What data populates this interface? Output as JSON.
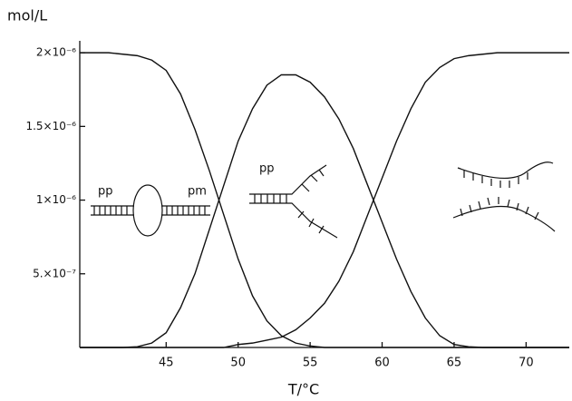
{
  "chart_data": {
    "type": "line",
    "y_label": "mol/L",
    "x_label": "T/°C",
    "annotations": [
      "pp",
      "pm",
      "pp"
    ],
    "xlim": [
      39,
      73
    ],
    "xticks": [
      45,
      50,
      55,
      60,
      65,
      70
    ],
    "ylim": [
      0,
      2.05e-06
    ],
    "yticks": [
      {
        "value": 5e-07,
        "label": "5.×10⁻⁷"
      },
      {
        "value": 1e-06,
        "label": "1×10⁻⁶"
      },
      {
        "value": 1.5e-06,
        "label": "1.5×10⁻⁶"
      },
      {
        "value": 2e-06,
        "label": "2×10⁻⁶"
      }
    ],
    "color": "#111111",
    "x": [
      39,
      40,
      41,
      42,
      43,
      44,
      45,
      46,
      47,
      48,
      49,
      50,
      51,
      52,
      53,
      54,
      55,
      56,
      57,
      58,
      59,
      60,
      61,
      62,
      63,
      64,
      65,
      66,
      67,
      68,
      69,
      70,
      71,
      72,
      73
    ],
    "series": [
      {
        "color": "#111111",
        "values": [
          2e-06,
          2e-06,
          2e-06,
          1.99e-06,
          1.98e-06,
          1.95e-06,
          1.88e-06,
          1.72e-06,
          1.48e-06,
          1.2e-06,
          9e-07,
          6e-07,
          3.5e-07,
          1.8e-07,
          8e-08,
          3e-08,
          1e-08,
          0,
          0,
          0,
          0,
          0,
          0,
          0,
          0,
          0,
          0,
          0,
          0,
          0,
          0,
          0,
          0,
          0,
          0
        ]
      },
      {
        "color": "#111111",
        "values": [
          0,
          0,
          0,
          0,
          5e-09,
          3e-08,
          1e-07,
          2.7e-07,
          5e-07,
          8e-07,
          1.1e-06,
          1.4e-06,
          1.62e-06,
          1.78e-06,
          1.85e-06,
          1.85e-06,
          1.8e-06,
          1.7e-06,
          1.55e-06,
          1.35e-06,
          1.1e-06,
          8.5e-07,
          6e-07,
          3.8e-07,
          2e-07,
          8e-08,
          2e-08,
          5e-09,
          0,
          0,
          0,
          0,
          0,
          0,
          0
        ]
      },
      {
        "color": "#111111",
        "values": [
          0,
          0,
          0,
          0,
          0,
          0,
          0,
          0,
          0,
          0,
          0,
          2e-08,
          3e-08,
          5e-08,
          7e-08,
          1.2e-07,
          2e-07,
          3e-07,
          4.5e-07,
          6.5e-07,
          9e-07,
          1.15e-06,
          1.4e-06,
          1.62e-06,
          1.8e-06,
          1.9e-06,
          1.96e-06,
          1.98e-06,
          1.99e-06,
          2e-06,
          2e-06,
          2e-06,
          2e-06,
          2e-06,
          2e-06
        ]
      }
    ]
  }
}
